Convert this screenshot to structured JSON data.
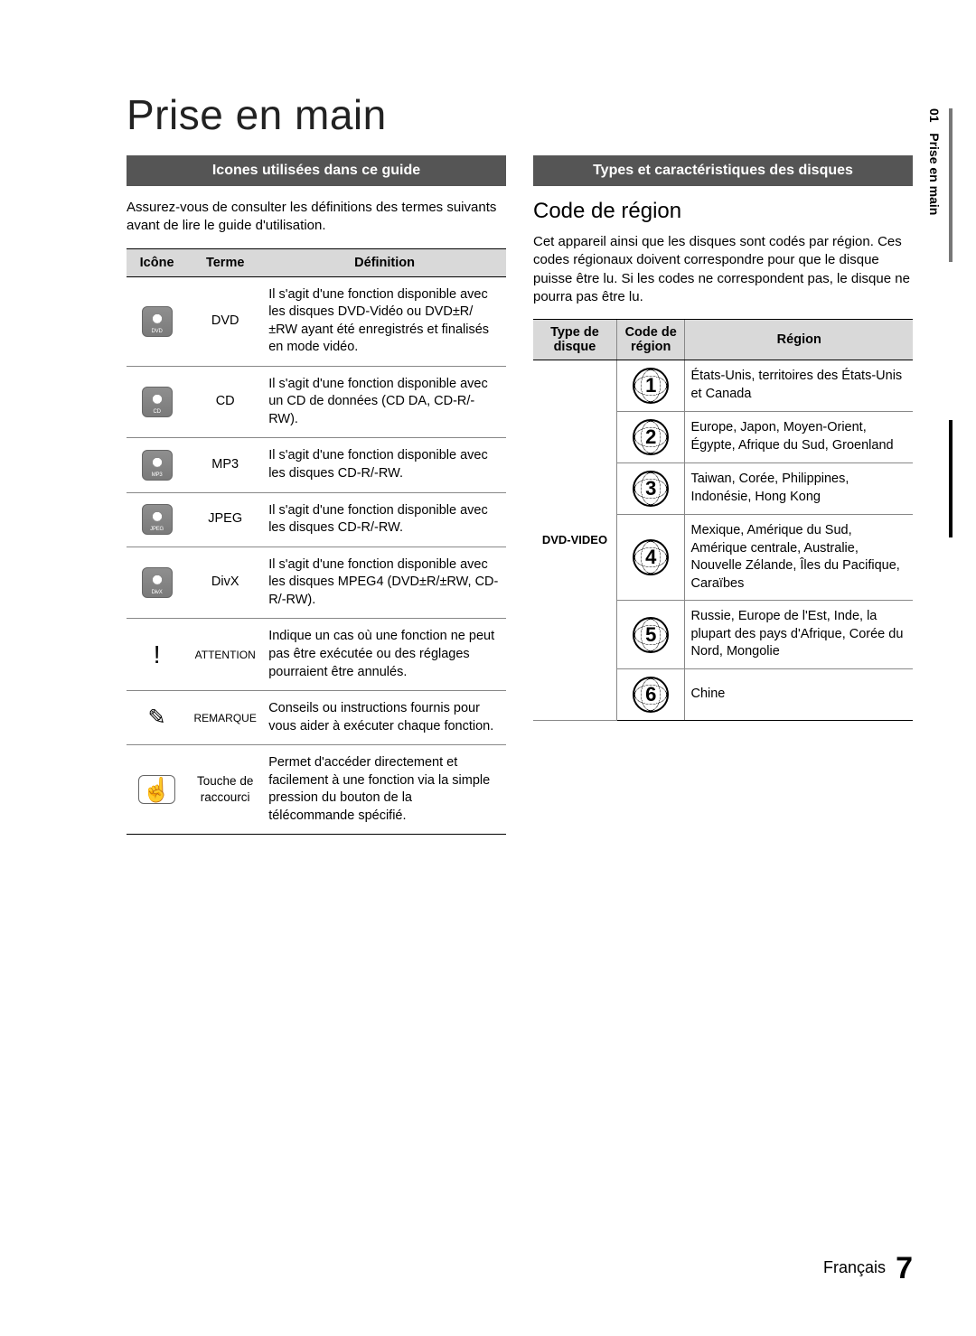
{
  "page": {
    "title": "Prise en main",
    "footer_language": "Français",
    "page_number": "7",
    "side_tab": {
      "section_number": "01",
      "section_name": "Prise en main"
    }
  },
  "colors": {
    "bar_bg": "#555555",
    "bar_text": "#ffffff",
    "table_header_bg": "#d9d9d9",
    "border": "#000000",
    "row_border": "#888888",
    "page_bg": "#ffffff"
  },
  "left": {
    "bar": "Icones utilisées dans ce guide",
    "intro": "Assurez-vous de consulter les définitions des termes suivants avant de lire le guide d'utilisation.",
    "headers": {
      "icon": "Icône",
      "term": "Terme",
      "definition": "Définition"
    },
    "rows": [
      {
        "icon_type": "disc",
        "icon_label": "DVD",
        "term": "DVD",
        "definition": "Il s'agit d'une fonction disponible avec les disques DVD-Vidéo ou DVD±R/±RW ayant été enregistrés et finalisés en mode vidéo."
      },
      {
        "icon_type": "disc",
        "icon_label": "CD",
        "term": "CD",
        "definition": "Il s'agit d'une fonction disponible avec un CD de données (CD DA, CD-R/-RW)."
      },
      {
        "icon_type": "disc",
        "icon_label": "MP3",
        "term": "MP3",
        "definition": "Il s'agit d'une fonction disponible avec les disques CD-R/-RW."
      },
      {
        "icon_type": "disc",
        "icon_label": "JPEG",
        "term": "JPEG",
        "definition": "Il s'agit d'une fonction disponible avec les disques CD-R/-RW."
      },
      {
        "icon_type": "disc",
        "icon_label": "DivX",
        "term": "DivX",
        "definition": "Il s'agit d'une fonction disponible avec les disques MPEG4 (DVD±R/±RW, CD-R/-RW)."
      },
      {
        "icon_type": "warn",
        "icon_label": "!",
        "term": "ATTENTION",
        "definition": "Indique un cas où une fonction ne peut pas être exécutée ou des réglages pourraient être annulés."
      },
      {
        "icon_type": "note",
        "icon_label": "✎",
        "term": "REMARQUE",
        "definition": "Conseils ou instructions fournis pour vous aider à exécuter chaque fonction."
      },
      {
        "icon_type": "hand",
        "icon_label": "☝",
        "term": "Touche de raccourci",
        "definition": "Permet d'accéder directement et facilement à une fonction via la simple pression du bouton de la télécommande spécifié."
      }
    ]
  },
  "right": {
    "bar": "Types et caractéristiques des disques",
    "subheading": "Code de région",
    "intro": "Cet appareil ainsi que les disques sont codés par région. Ces codes régionaux doivent correspondre pour que le disque puisse être lu. Si les codes ne correspondent pas, le disque ne pourra pas être lu.",
    "headers": {
      "type": "Type de disque",
      "code": "Code de région",
      "region": "Région"
    },
    "disc_type_label": "DVD-VIDEO",
    "regions": [
      {
        "code": "1",
        "region": "États-Unis, territoires des États-Unis et Canada"
      },
      {
        "code": "2",
        "region": "Europe, Japon, Moyen-Orient, Égypte, Afrique du Sud, Groenland"
      },
      {
        "code": "3",
        "region": "Taiwan, Corée, Philippines, Indonésie, Hong Kong"
      },
      {
        "code": "4",
        "region": "Mexique, Amérique du Sud, Amérique centrale, Australie, Nouvelle Zélande, Îles du Pacifique, Caraïbes"
      },
      {
        "code": "5",
        "region": "Russie, Europe de l'Est, Inde, la plupart des pays d'Afrique, Corée du Nord, Mongolie"
      },
      {
        "code": "6",
        "region": "Chine"
      }
    ]
  }
}
